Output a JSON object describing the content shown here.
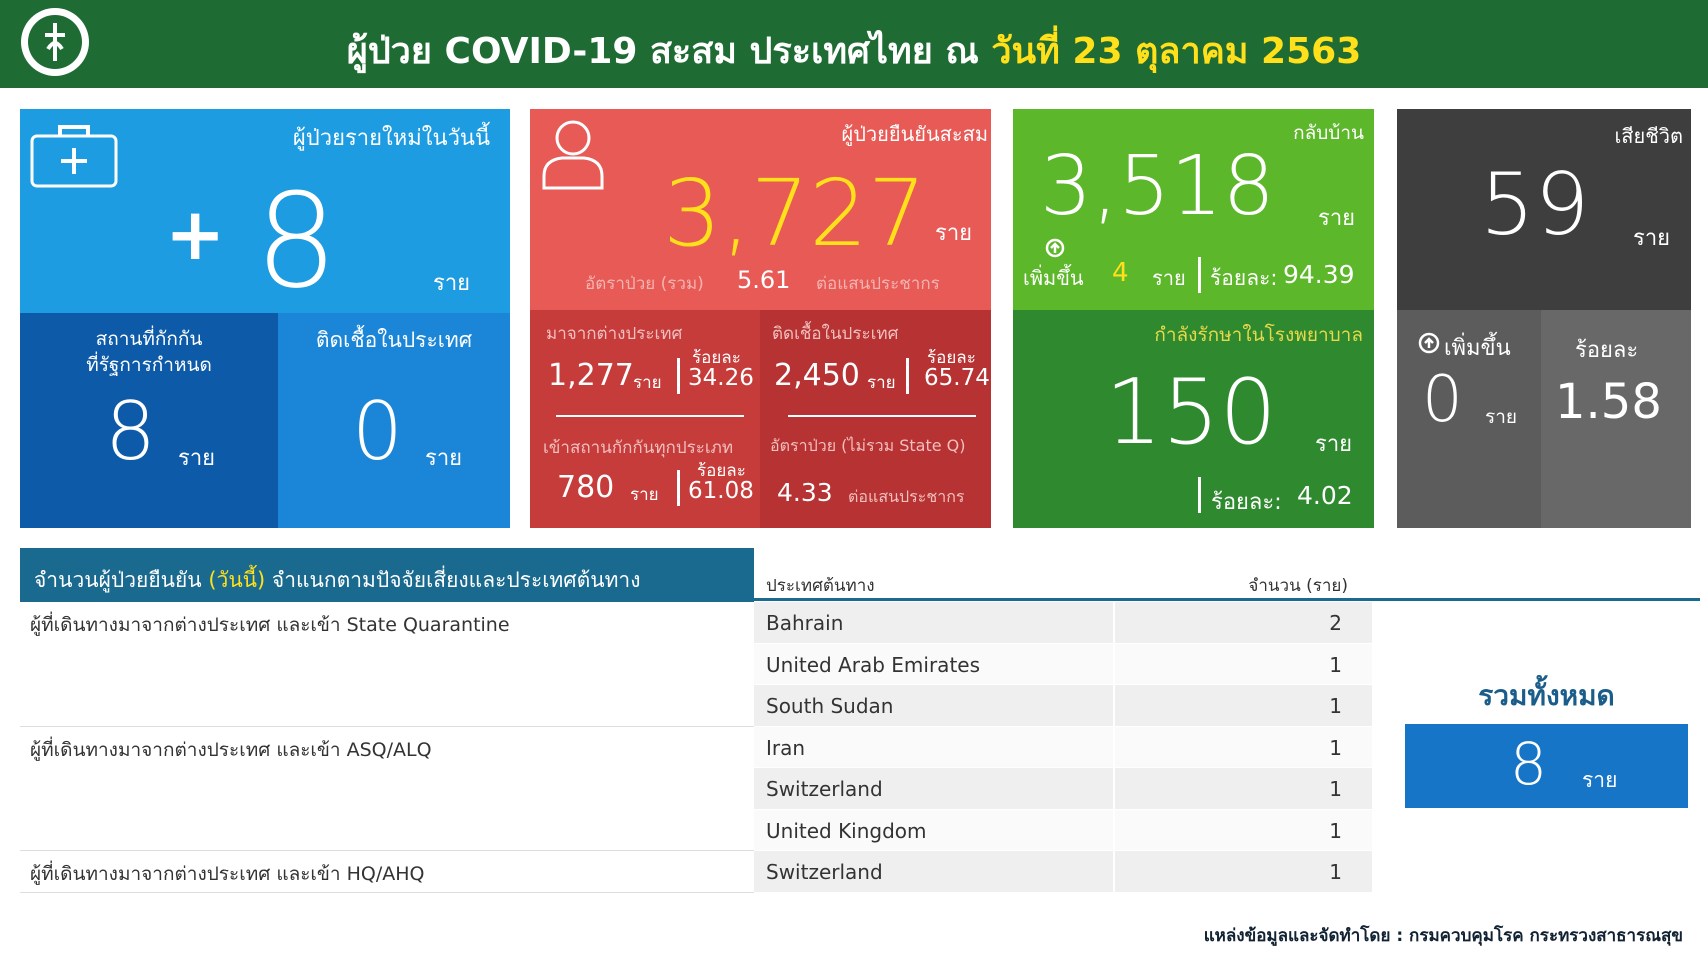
{
  "header": {
    "title": "ผู้ป่วย COVID-19 สะสม  ประเทศไทย  ณ",
    "date": "วันที่ 23 ตุลาคม 2563"
  },
  "new_cases": {
    "label": "ผู้ป่วยรายใหม่ในวันนี้",
    "sign": "+",
    "value": 8,
    "unit": "ราย",
    "quarantine": {
      "label_lines": [
        "สถานที่กักกัน",
        "ที่รัฐการกำหนด"
      ],
      "value": 8,
      "unit": "ราย"
    },
    "local": {
      "label": "ติดเชื้อในประเทศ",
      "value": 0,
      "unit": "ราย"
    }
  },
  "confirmed": {
    "label": "ผู้ป่วยยืนยันสะสม",
    "value": "3,727",
    "unit": "ราย",
    "rate_label": "อัตราป่วย (รวม)",
    "rate": 5.61,
    "rate_unit": "ต่อแสนประชากร",
    "abroad": {
      "label": "มาจากต่างประเทศ",
      "value": "1,277",
      "unit": "ราย",
      "pct_label": "ร้อยละ",
      "pct": 34.26
    },
    "local": {
      "label": "ติดเชื้อในประเทศ",
      "value": "2,450",
      "unit": "ราย",
      "pct_label": "ร้อยละ",
      "pct": 65.74
    },
    "state_q": {
      "label": "เข้าสถานกักกันทุกประเภท",
      "value": 780,
      "unit": "ราย",
      "pct_label": "ร้อยละ",
      "pct": 61.08
    },
    "rate_excl": {
      "label": "อัตราป่วย (ไม่รวม State Q)",
      "value": 4.33,
      "unit": "ต่อแสนประชากร"
    }
  },
  "recovered": {
    "label": "กลับบ้าน",
    "value": "3,518",
    "unit": "ราย",
    "increase_label": "เพิ่มขึ้น",
    "increase": 4,
    "increase_unit": "ราย",
    "pct_label": "ร้อยละ:",
    "pct": 94.39
  },
  "hospital": {
    "label": "กำลังรักษาในโรงพยาบาล",
    "value": 150,
    "unit": "ราย",
    "pct_label": "ร้อยละ:",
    "pct": 4.02
  },
  "deaths": {
    "label": "เสียชีวิต",
    "value": 59,
    "unit": "ราย",
    "increase_label": "เพิ่มขึ้น",
    "increase": 0,
    "increase_unit": "ราย",
    "pct_label": "ร้อยละ",
    "pct": 1.58
  },
  "table": {
    "title_parts": [
      "จำนวนผู้ป่วยยืนยัน ",
      "(วันนี้)",
      " จำแนกตามปัจจัยเสี่ยงและประเทศต้นทาง"
    ],
    "columns": [
      "ประเทศต้นทาง",
      "จำนวน (ราย)"
    ],
    "groups": [
      {
        "label": "ผู้ที่เดินทางมาจากต่างประเทศ และเข้า State Quarantine",
        "rows": [
          [
            "Bahrain",
            2
          ],
          [
            "United Arab Emirates",
            1
          ],
          [
            "South Sudan",
            1
          ]
        ]
      },
      {
        "label": "ผู้ที่เดินทางมาจากต่างประเทศ และเข้า ASQ/ALQ",
        "rows": [
          [
            "Iran",
            1
          ],
          [
            "Switzerland",
            1
          ],
          [
            "United Kingdom",
            1
          ]
        ]
      },
      {
        "label": "ผู้ที่เดินทางมาจากต่างประเทศ และเข้า HQ/AHQ",
        "rows": [
          [
            "Switzerland",
            1
          ]
        ]
      }
    ]
  },
  "total": {
    "label": "รวมทั้งหมด",
    "value": 8,
    "unit": "ราย"
  },
  "source": "แหล่งข้อมูลและจัดทำโดย : กรมควบคุมโรค กระทรวงสาธารณสุข"
}
